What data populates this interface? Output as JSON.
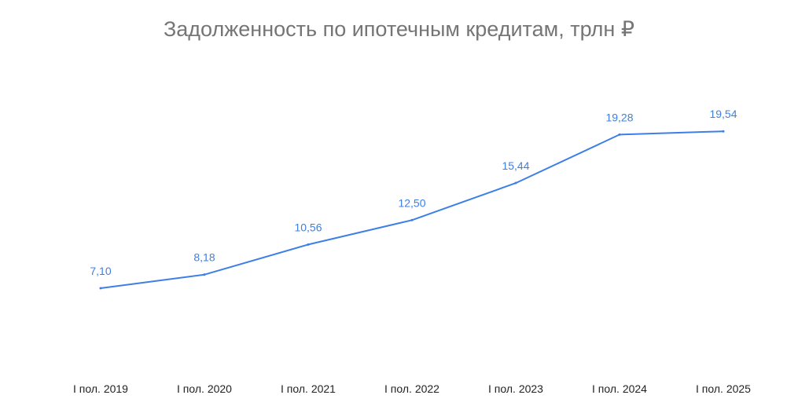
{
  "chart_data": {
    "type": "line",
    "title": "Задолженность по ипотечным кредитам, трлн ₽",
    "xlabel": "",
    "ylabel": "",
    "categories": [
      "I пол. 2019",
      "I пол. 2020",
      "I пол. 2021",
      "I пол. 2022",
      "I пол. 2023",
      "I пол. 2024",
      "I пол. 2025"
    ],
    "series": [
      {
        "values": [
          7.1,
          8.18,
          10.56,
          12.5,
          15.44,
          19.28,
          19.54
        ],
        "labels": [
          "7,10",
          "8,18",
          "10,56",
          "12,50",
          "15,44",
          "19,28",
          "19,54"
        ],
        "color": "#3d7fe6"
      }
    ],
    "grid": false,
    "legend": "none"
  }
}
